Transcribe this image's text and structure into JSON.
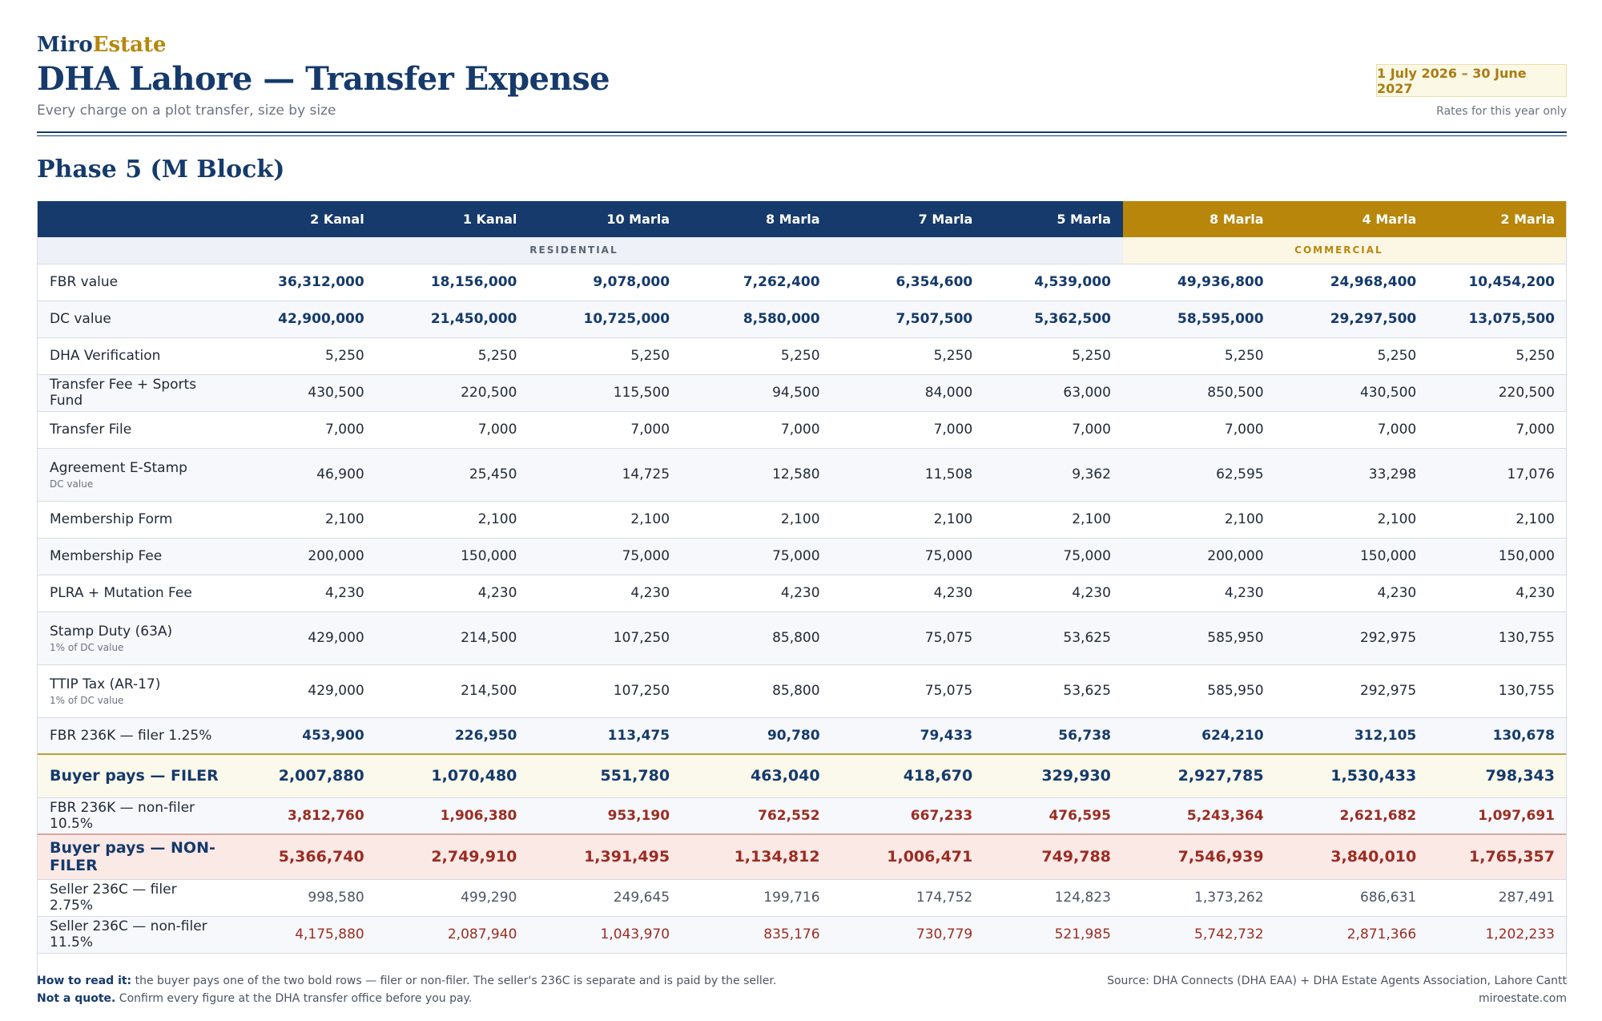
{
  "brand": {
    "part1": "Miro",
    "part2": "Estate"
  },
  "title": "DHA Lahore — Transfer Expense",
  "subtitle": "Every charge on a plot transfer, size by size",
  "period": {
    "range": "1 July 2026 – 30 June 2027",
    "note": "Rates for this year only"
  },
  "phase_title": "Phase 5 (M Block)",
  "table": {
    "columns": [
      "2 Kanal",
      "1 Kanal",
      "10 Marla",
      "8 Marla",
      "7 Marla",
      "5 Marla",
      "8 Marla",
      "4 Marla",
      "2 Marla"
    ],
    "groups": {
      "residential": "RESIDENTIAL",
      "commercial": "COMMERCIAL"
    },
    "rows": [
      {
        "label": "FBR value",
        "note": "",
        "values": [
          "36,312,000",
          "18,156,000",
          "9,078,000",
          "7,262,400",
          "6,354,600",
          "4,539,000",
          "49,936,800",
          "24,968,400",
          "10,454,200"
        ]
      },
      {
        "label": "DC value",
        "note": "",
        "values": [
          "42,900,000",
          "21,450,000",
          "10,725,000",
          "8,580,000",
          "7,507,500",
          "5,362,500",
          "58,595,000",
          "29,297,500",
          "13,075,500"
        ]
      },
      {
        "label": "DHA Verification",
        "note": "",
        "values": [
          "5,250",
          "5,250",
          "5,250",
          "5,250",
          "5,250",
          "5,250",
          "5,250",
          "5,250",
          "5,250"
        ]
      },
      {
        "label": "Transfer Fee + Sports Fund",
        "note": "",
        "values": [
          "430,500",
          "220,500",
          "115,500",
          "94,500",
          "84,000",
          "63,000",
          "850,500",
          "430,500",
          "220,500"
        ]
      },
      {
        "label": "Transfer File",
        "note": "",
        "values": [
          "7,000",
          "7,000",
          "7,000",
          "7,000",
          "7,000",
          "7,000",
          "7,000",
          "7,000",
          "7,000"
        ]
      },
      {
        "label": "Agreement E-Stamp",
        "note": "DC value",
        "values": [
          "46,900",
          "25,450",
          "14,725",
          "12,580",
          "11,508",
          "9,362",
          "62,595",
          "33,298",
          "17,076"
        ]
      },
      {
        "label": "Membership Form",
        "note": "",
        "values": [
          "2,100",
          "2,100",
          "2,100",
          "2,100",
          "2,100",
          "2,100",
          "2,100",
          "2,100",
          "2,100"
        ]
      },
      {
        "label": "Membership Fee",
        "note": "",
        "values": [
          "200,000",
          "150,000",
          "75,000",
          "75,000",
          "75,000",
          "75,000",
          "200,000",
          "150,000",
          "150,000"
        ]
      },
      {
        "label": "PLRA + Mutation Fee",
        "note": "",
        "values": [
          "4,230",
          "4,230",
          "4,230",
          "4,230",
          "4,230",
          "4,230",
          "4,230",
          "4,230",
          "4,230"
        ]
      },
      {
        "label": "Stamp Duty (63A)",
        "note": "1% of DC value",
        "values": [
          "429,000",
          "214,500",
          "107,250",
          "85,800",
          "75,075",
          "53,625",
          "585,950",
          "292,975",
          "130,755"
        ]
      },
      {
        "label": "TTIP Tax (AR-17)",
        "note": "1% of DC value",
        "values": [
          "429,000",
          "214,500",
          "107,250",
          "85,800",
          "75,075",
          "53,625",
          "585,950",
          "292,975",
          "130,755"
        ]
      },
      {
        "label": "FBR 236K — filer 1.25%",
        "note": "",
        "values": [
          "453,900",
          "226,950",
          "113,475",
          "90,780",
          "79,433",
          "56,738",
          "624,210",
          "312,105",
          "130,678"
        ]
      }
    ],
    "filer_total": {
      "label": "Buyer pays — FILER",
      "values": [
        "2,007,880",
        "1,070,480",
        "551,780",
        "463,040",
        "418,670",
        "329,930",
        "2,927,785",
        "1,530,433",
        "798,343"
      ]
    },
    "nonfiler_row": {
      "label": "FBR 236K — non-filer 10.5%",
      "values": [
        "3,812,760",
        "1,906,380",
        "953,190",
        "762,552",
        "667,233",
        "476,595",
        "5,243,364",
        "2,621,682",
        "1,097,691"
      ]
    },
    "nonfiler_total": {
      "label": "Buyer pays — NON-FILER",
      "values": [
        "5,366,740",
        "2,749,910",
        "1,391,495",
        "1,134,812",
        "1,006,471",
        "749,788",
        "7,546,939",
        "3,840,010",
        "1,765,357"
      ]
    },
    "seller_filer": {
      "label": "Seller 236C — filer 2.75%",
      "values": [
        "998,580",
        "499,290",
        "249,645",
        "199,716",
        "174,752",
        "124,823",
        "1,373,262",
        "686,631",
        "287,491"
      ]
    },
    "seller_nonfiler": {
      "label": "Seller 236C — non-filer 11.5%",
      "values": [
        "4,175,880",
        "2,087,940",
        "1,043,970",
        "835,176",
        "730,779",
        "521,985",
        "5,742,732",
        "2,871,366",
        "1,202,233"
      ]
    }
  },
  "footer": {
    "how_label": "How to read it:",
    "how_text": " the buyer pays one of the two bold rows — filer or non-filer. The seller's 236C is separate and is paid by the seller.",
    "quote_label": "Not a quote.",
    "quote_text": " Confirm every figure at the DHA transfer office before you pay.",
    "source": "Source: DHA Connects (DHA EAA) + DHA Estate Agents Association, Lahore Cantt",
    "site": "miroestate.com"
  }
}
